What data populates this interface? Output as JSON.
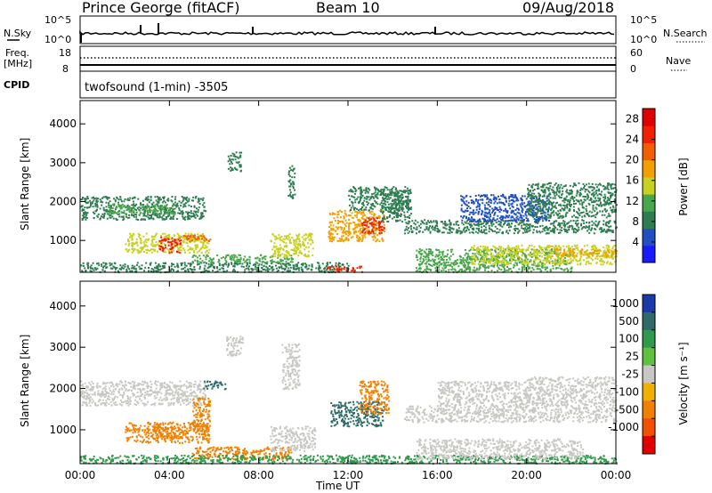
{
  "header": {
    "station": "Prince George (fitACF)",
    "beam": "Beam 10",
    "date": "09/Aug/2018"
  },
  "summary_panels": {
    "nsky_label": "N.Sky",
    "nsky_ticks": [
      "10^5",
      "10^0"
    ],
    "nsearch_label": "N.Search",
    "freq_label_1": "Freq.",
    "freq_label_2": "[MHz]",
    "freq_ticks": [
      "18",
      "8"
    ],
    "nave_ticks": [
      "60",
      "0"
    ],
    "nave_label": "Nave",
    "cpid_label": "CPID",
    "cpid_text": "twofsound (1-min) -3505"
  },
  "colors": {
    "scatter_grey": "#c8c8c3",
    "power_scale": [
      "#1a1aff",
      "#2050c0",
      "#2e7d50",
      "#4aa64a",
      "#c8d020",
      "#f0a000",
      "#f06000",
      "#f02000",
      "#e00000"
    ],
    "velocity_scale": [
      "#1a3aaa",
      "#2e6a6a",
      "#2e9a4a",
      "#60c040",
      "#c8c8c3",
      "#f0b000",
      "#f08000",
      "#f05000",
      "#e00000"
    ]
  },
  "chart_data": [
    {
      "type": "heatmap",
      "panel": "power",
      "ylabel": "Slant Range [km]",
      "xlabel": "",
      "y_ticks": [
        1000,
        2000,
        3000,
        4000
      ],
      "ylim": [
        180,
        4600
      ],
      "x_ticks": [
        "00:00",
        "04:00",
        "08:00",
        "12:00",
        "16:00",
        "20:00",
        "00:00"
      ],
      "xlim_hours": [
        0,
        24
      ],
      "colorbar_label": "Power [dB]",
      "colorbar_ticks": [
        4,
        8,
        12,
        16,
        20,
        24,
        28
      ],
      "colorbar_range": [
        0,
        30
      ],
      "patches": [
        {
          "t0": 0.0,
          "t1": 5.6,
          "r0": 1550,
          "r1": 2150,
          "value": 9
        },
        {
          "t0": 1.2,
          "t1": 4.2,
          "r0": 1700,
          "r1": 1950,
          "value": 13
        },
        {
          "t0": 2.0,
          "t1": 5.8,
          "r0": 700,
          "r1": 1200,
          "value": 12
        },
        {
          "t0": 3.5,
          "t1": 4.5,
          "r0": 700,
          "r1": 1100,
          "value": 28
        },
        {
          "t0": 4.4,
          "t1": 5.8,
          "r0": 1000,
          "r1": 1150,
          "value": 22
        },
        {
          "t0": 0.0,
          "t1": 12.0,
          "r0": 200,
          "r1": 450,
          "value": 9
        },
        {
          "t0": 5.0,
          "t1": 9.5,
          "r0": 450,
          "r1": 650,
          "value": 10
        },
        {
          "t0": 8.5,
          "t1": 10.4,
          "r0": 600,
          "r1": 1200,
          "value": 14
        },
        {
          "t0": 11.0,
          "t1": 12.6,
          "r0": 200,
          "r1": 350,
          "value": 24
        },
        {
          "t0": 11.1,
          "t1": 13.6,
          "r0": 1000,
          "r1": 1800,
          "value": 20
        },
        {
          "t0": 12.6,
          "t1": 13.6,
          "r0": 1200,
          "r1": 1600,
          "value": 26
        },
        {
          "t0": 13.4,
          "t1": 14.8,
          "r0": 1500,
          "r1": 2300,
          "value": 8
        },
        {
          "t0": 14.5,
          "t1": 24.0,
          "r0": 1200,
          "r1": 1550,
          "value": 9
        },
        {
          "t0": 15.0,
          "t1": 22.0,
          "r0": 200,
          "r1": 800,
          "value": 12
        },
        {
          "t0": 17.5,
          "t1": 24.0,
          "r0": 400,
          "r1": 900,
          "value": 16
        },
        {
          "t0": 21.0,
          "t1": 24.0,
          "r0": 600,
          "r1": 800,
          "value": 20
        },
        {
          "t0": 6.6,
          "t1": 7.2,
          "r0": 2800,
          "r1": 3300,
          "value": 8
        },
        {
          "t0": 9.3,
          "t1": 9.6,
          "r0": 2100,
          "r1": 3000,
          "value": 6
        },
        {
          "t0": 12.0,
          "t1": 14.8,
          "r0": 1800,
          "r1": 2400,
          "value": 6
        },
        {
          "t0": 17.0,
          "t1": 21.0,
          "r0": 1500,
          "r1": 2200,
          "value": 5
        },
        {
          "t0": 20.0,
          "t1": 24.0,
          "r0": 1600,
          "r1": 2500,
          "value": 7
        }
      ]
    },
    {
      "type": "heatmap",
      "panel": "velocity",
      "ylabel": "Slant Range [km]",
      "xlabel": "Time UT",
      "y_ticks": [
        1000,
        2000,
        3000,
        4000
      ],
      "ylim": [
        180,
        4600
      ],
      "x_ticks": [
        "00:00",
        "04:00",
        "08:00",
        "12:00",
        "16:00",
        "20:00",
        "00:00"
      ],
      "xlim_hours": [
        0,
        24
      ],
      "colorbar_label": "Velocity [m s⁻¹]",
      "colorbar_ticks": [
        "1000",
        "500",
        "100",
        "25",
        "-25",
        "-100",
        "-500",
        "-1000"
      ],
      "patches": [
        {
          "t0": 0.0,
          "t1": 5.6,
          "r0": 1600,
          "r1": 2200,
          "value": 0
        },
        {
          "t0": 2.0,
          "t1": 5.8,
          "r0": 700,
          "r1": 1200,
          "value": -150
        },
        {
          "t0": 3.2,
          "t1": 4.6,
          "r0": 800,
          "r1": 1100,
          "value": -300
        },
        {
          "t0": 5.0,
          "t1": 5.8,
          "r0": 1000,
          "r1": 1800,
          "value": -400
        },
        {
          "t0": 5.0,
          "t1": 9.5,
          "r0": 300,
          "r1": 600,
          "value": -200
        },
        {
          "t0": 0.0,
          "t1": 24.0,
          "r0": 200,
          "r1": 400,
          "value": 60
        },
        {
          "t0": 8.5,
          "t1": 10.5,
          "r0": 500,
          "r1": 1100,
          "value": 0
        },
        {
          "t0": 11.2,
          "t1": 13.6,
          "r0": 1100,
          "r1": 1700,
          "value": 300
        },
        {
          "t0": 12.5,
          "t1": 13.8,
          "r0": 1400,
          "r1": 2200,
          "value": -400
        },
        {
          "t0": 14.5,
          "t1": 24.0,
          "r0": 1200,
          "r1": 1600,
          "value": 0
        },
        {
          "t0": 15.0,
          "t1": 22.5,
          "r0": 300,
          "r1": 800,
          "value": 0
        },
        {
          "t0": 20.0,
          "t1": 24.0,
          "r0": 1600,
          "r1": 2300,
          "value": 0
        },
        {
          "t0": 16.0,
          "t1": 20.0,
          "r0": 1600,
          "r1": 2200,
          "value": 0
        },
        {
          "t0": 6.5,
          "t1": 7.3,
          "r0": 2800,
          "r1": 3300,
          "value": 0
        },
        {
          "t0": 9.0,
          "t1": 9.8,
          "r0": 2000,
          "r1": 3100,
          "value": 0
        },
        {
          "t0": 5.5,
          "t1": 6.5,
          "r0": 2000,
          "r1": 2200,
          "value": 300
        }
      ]
    }
  ]
}
